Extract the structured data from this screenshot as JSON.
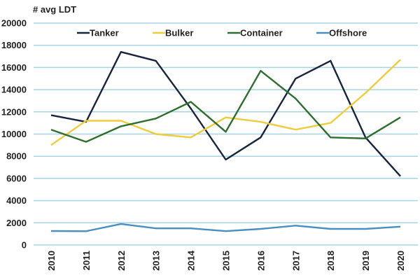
{
  "chart_data": {
    "type": "line",
    "title": "",
    "ylabel": "# avg LDT",
    "xlabel": "",
    "ylim": [
      0,
      20000
    ],
    "yticks": [
      "0",
      "2000",
      "4000",
      "6000",
      "8000",
      "10000",
      "12000",
      "14000",
      "16000",
      "18000",
      "20000"
    ],
    "ytick_values": [
      0,
      2000,
      4000,
      6000,
      8000,
      10000,
      12000,
      14000,
      16000,
      18000,
      20000
    ],
    "categories": [
      "2010",
      "2011",
      "2012",
      "2013",
      "2014",
      "2015",
      "2016",
      "2017",
      "2018",
      "2019",
      "2020"
    ],
    "grid": true,
    "legend_position": "top",
    "gridline_color": "#a9d4e2",
    "series": [
      {
        "name": "Tanker",
        "color": "#17243d",
        "values": [
          11700,
          11100,
          17400,
          16600,
          12300,
          7700,
          9700,
          15000,
          16600,
          9700,
          6200
        ]
      },
      {
        "name": "Bulker",
        "color": "#efcc3b",
        "values": [
          9000,
          11200,
          11200,
          10000,
          9700,
          11500,
          11100,
          10400,
          11000,
          13700,
          16700
        ]
      },
      {
        "name": "Container",
        "color": "#2e6e2e",
        "values": [
          10400,
          9300,
          10700,
          11400,
          12900,
          10200,
          15700,
          13200,
          9700,
          9600,
          11500
        ]
      },
      {
        "name": "Offshore",
        "color": "#4a8fc0",
        "values": [
          1260,
          1240,
          1900,
          1500,
          1500,
          1250,
          1450,
          1750,
          1450,
          1450,
          1650
        ]
      }
    ]
  }
}
